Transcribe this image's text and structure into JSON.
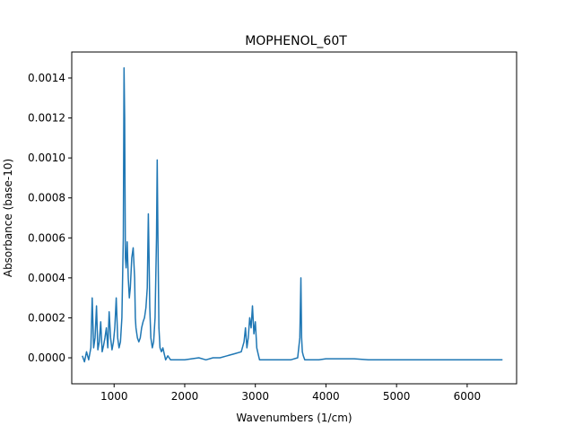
{
  "chart_data": {
    "type": "line",
    "title": "MOPHENOL_60T",
    "xlabel": "Wavenumbers (1/cm)",
    "ylabel": "Absorbance (base-10)",
    "xlim": [
      400,
      6700
    ],
    "ylim": [
      -0.00013,
      0.00153
    ],
    "grid": false,
    "line_color": "#1f77b4",
    "x_ticks": [
      {
        "value": 1000,
        "label": "1000"
      },
      {
        "value": 2000,
        "label": "2000"
      },
      {
        "value": 3000,
        "label": "3000"
      },
      {
        "value": 4000,
        "label": "4000"
      },
      {
        "value": 5000,
        "label": "5000"
      },
      {
        "value": 6000,
        "label": "6000"
      }
    ],
    "y_ticks": [
      {
        "value": 0.0,
        "label": "0.0000"
      },
      {
        "value": 0.0002,
        "label": "0.0002"
      },
      {
        "value": 0.0004,
        "label": "0.0004"
      },
      {
        "value": 0.0006,
        "label": "0.0006"
      },
      {
        "value": 0.0008,
        "label": "0.0008"
      },
      {
        "value": 0.001,
        "label": "0.0010"
      },
      {
        "value": 0.0012,
        "label": "0.0012"
      },
      {
        "value": 0.0014,
        "label": "0.0014"
      }
    ],
    "series": [
      {
        "x": [
          550,
          580,
          610,
          640,
          670,
          690,
          710,
          730,
          750,
          770,
          790,
          810,
          830,
          850,
          870,
          890,
          910,
          930,
          950,
          970,
          990,
          1010,
          1030,
          1050,
          1070,
          1090,
          1110,
          1130,
          1140,
          1150,
          1160,
          1170,
          1185,
          1200,
          1215,
          1230,
          1250,
          1270,
          1290,
          1300,
          1310,
          1330,
          1350,
          1370,
          1390,
          1410,
          1430,
          1450,
          1470,
          1485,
          1495,
          1505,
          1520,
          1540,
          1560,
          1580,
          1600,
          1610,
          1620,
          1635,
          1650,
          1670,
          1690,
          1710,
          1730,
          1760,
          1800,
          1850,
          1900,
          2000,
          2100,
          2200,
          2300,
          2400,
          2500,
          2600,
          2700,
          2800,
          2840,
          2860,
          2880,
          2900,
          2920,
          2940,
          2960,
          2980,
          3000,
          3020,
          3040,
          3060,
          3100,
          3200,
          3300,
          3400,
          3500,
          3600,
          3630,
          3645,
          3655,
          3665,
          3680,
          3700,
          3750,
          3800,
          3900,
          4000,
          4200,
          4400,
          4600,
          4800,
          5000,
          5200,
          5400,
          5600,
          5800,
          6000,
          6200,
          6400,
          6500
        ],
        "y": [
          1e-05,
          -2e-05,
          3e-05,
          -1e-05,
          5e-05,
          0.0003,
          5e-05,
          0.0001,
          0.00026,
          4e-05,
          8e-05,
          0.00018,
          3e-05,
          6e-05,
          0.0001,
          0.00015,
          5e-05,
          0.00023,
          0.0001,
          4e-05,
          8e-05,
          0.00015,
          0.0003,
          0.0001,
          5e-05,
          8e-05,
          0.0002,
          0.0006,
          0.00145,
          0.0012,
          0.0005,
          0.00045,
          0.00058,
          0.0004,
          0.0003,
          0.00035,
          0.0005,
          0.00055,
          0.0004,
          0.0002,
          0.00015,
          0.0001,
          8e-05,
          0.0001,
          0.00015,
          0.00018,
          0.0002,
          0.00025,
          0.00035,
          0.00072,
          0.0005,
          0.00025,
          0.0001,
          5e-05,
          8e-05,
          0.0002,
          0.0006,
          0.00099,
          0.0006,
          0.00015,
          5e-05,
          3e-05,
          5e-05,
          2e-05,
          -1e-05,
          1e-05,
          -1e-05,
          -1e-05,
          -1e-05,
          -1e-05,
          -5e-06,
          0.0,
          -1e-05,
          0.0,
          0.0,
          1e-05,
          2e-05,
          3e-05,
          8e-05,
          0.00015,
          5e-05,
          0.0001,
          0.0002,
          0.00015,
          0.00026,
          0.00012,
          0.00018,
          5e-05,
          2e-05,
          -1e-05,
          -1e-05,
          -1e-05,
          -1e-05,
          -1e-05,
          -1e-05,
          0.0,
          0.0001,
          0.0004,
          0.0001,
          3e-05,
          1e-05,
          -1e-05,
          -1e-05,
          -1e-05,
          -1e-05,
          -5e-06,
          -5e-06,
          -5e-06,
          -1e-05,
          -1e-05,
          -1e-05,
          -1e-05,
          -1e-05,
          -1e-05,
          -1e-05,
          -1e-05,
          -1e-05,
          -1e-05,
          -1e-05
        ]
      }
    ]
  }
}
